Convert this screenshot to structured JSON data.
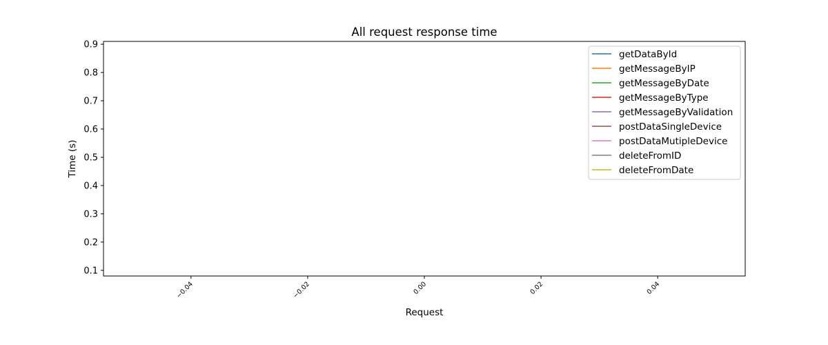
{
  "chart_data": {
    "type": "line",
    "title": "All request response time",
    "xlabel": "Request",
    "ylabel": "Time (s)",
    "xlim": [
      -0.055,
      0.055
    ],
    "ylim": [
      0.08,
      0.91
    ],
    "x_ticks": [
      -0.04,
      -0.02,
      0.0,
      0.02,
      0.04
    ],
    "x_tick_labels": [
      "−0.04",
      "−0.02",
      "0.00",
      "0.02",
      "0.04"
    ],
    "y_ticks": [
      0.1,
      0.2,
      0.3,
      0.4,
      0.5,
      0.6,
      0.7,
      0.8,
      0.9
    ],
    "y_tick_labels": [
      "0.1",
      "0.2",
      "0.3",
      "0.4",
      "0.5",
      "0.6",
      "0.7",
      "0.8",
      "0.9"
    ],
    "grid": false,
    "legend_position": "top-right",
    "series": [
      {
        "name": "getDataById",
        "color": "#1f77b4",
        "x": [],
        "y": []
      },
      {
        "name": "getMessageByIP",
        "color": "#ff7f0e",
        "x": [],
        "y": []
      },
      {
        "name": "getMessageByDate",
        "color": "#2ca02c",
        "x": [],
        "y": []
      },
      {
        "name": "getMessageByType",
        "color": "#d62728",
        "x": [],
        "y": []
      },
      {
        "name": "getMessageByValidation",
        "color": "#9467bd",
        "x": [],
        "y": []
      },
      {
        "name": "postDataSingleDevice",
        "color": "#8c564b",
        "x": [],
        "y": []
      },
      {
        "name": "postDataMutipleDevice",
        "color": "#e377c2",
        "x": [],
        "y": []
      },
      {
        "name": "deleteFromID",
        "color": "#7f7f7f",
        "x": [],
        "y": []
      },
      {
        "name": "deleteFromDate",
        "color": "#bcbd22",
        "x": [],
        "y": []
      }
    ]
  }
}
